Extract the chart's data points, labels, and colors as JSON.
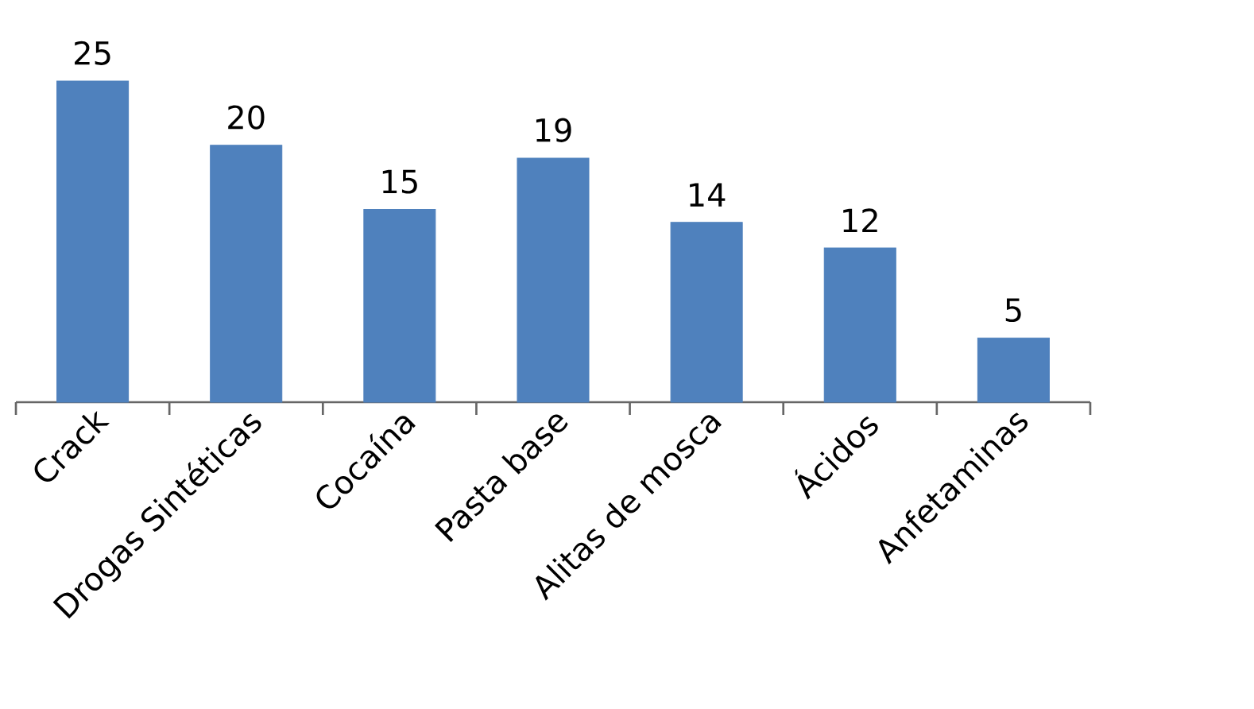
{
  "chart_data": {
    "type": "bar",
    "categories": [
      "Crack",
      "Drogas Sintéticas",
      "Cocaína",
      "Pasta base",
      "Alitas de mosca",
      "Ácidos",
      "Anfetaminas"
    ],
    "values": [
      25,
      20,
      15,
      19,
      14,
      12,
      5
    ],
    "color": "#4f81bd",
    "data_labels": true
  }
}
